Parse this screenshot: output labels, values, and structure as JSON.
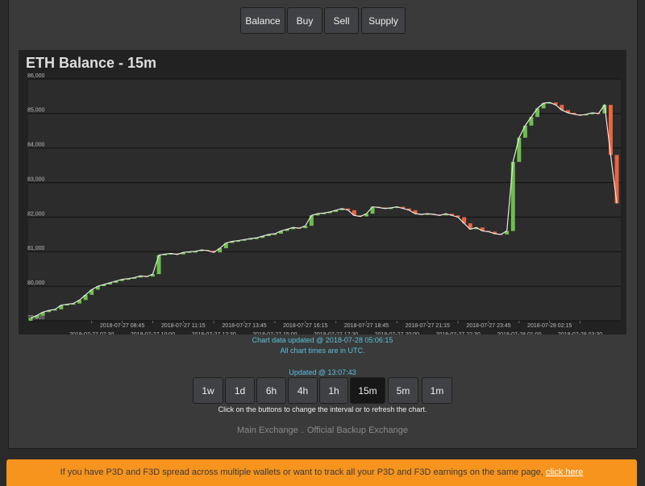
{
  "nav": [
    "Balance",
    "Buy",
    "Sell",
    "Supply"
  ],
  "chart_data": {
    "type": "candlestick",
    "title": "ETH Balance - 15m",
    "x": [
      "2018-07-27 05:00",
      "2018-07-27 05:15",
      "2018-07-27 05:30",
      "2018-07-27 05:45",
      "2018-07-27 06:00",
      "2018-07-27 06:15",
      "2018-07-27 06:30",
      "2018-07-27 06:45",
      "2018-07-27 07:00",
      "2018-07-27 07:15",
      "2018-07-27 07:30",
      "2018-07-27 07:45",
      "2018-07-27 08:00",
      "2018-07-27 08:15",
      "2018-07-27 08:30",
      "2018-07-27 08:45",
      "2018-07-27 09:00",
      "2018-07-27 09:15",
      "2018-07-27 09:30",
      "2018-07-27 09:45",
      "2018-07-27 10:00",
      "2018-07-27 10:15",
      "2018-07-27 10:30",
      "2018-07-27 10:45",
      "2018-07-27 11:00",
      "2018-07-27 11:15",
      "2018-07-27 11:30",
      "2018-07-27 11:45",
      "2018-07-27 12:00",
      "2018-07-27 12:15",
      "2018-07-27 12:30",
      "2018-07-27 12:45",
      "2018-07-27 13:00",
      "2018-07-27 13:15",
      "2018-07-27 13:30",
      "2018-07-27 13:45",
      "2018-07-27 14:00",
      "2018-07-27 14:15",
      "2018-07-27 14:30",
      "2018-07-27 14:45",
      "2018-07-27 15:00",
      "2018-07-27 15:15",
      "2018-07-27 15:30",
      "2018-07-27 15:45",
      "2018-07-27 16:00",
      "2018-07-27 16:15",
      "2018-07-27 16:30",
      "2018-07-27 16:45",
      "2018-07-27 17:00",
      "2018-07-27 17:15",
      "2018-07-27 17:30",
      "2018-07-27 17:45",
      "2018-07-27 18:00",
      "2018-07-27 18:15",
      "2018-07-27 18:30",
      "2018-07-27 18:45",
      "2018-07-27 19:00",
      "2018-07-27 19:15",
      "2018-07-27 19:30",
      "2018-07-27 19:45",
      "2018-07-27 20:00",
      "2018-07-27 20:15",
      "2018-07-27 20:30",
      "2018-07-27 20:45",
      "2018-07-27 21:00",
      "2018-07-27 21:15",
      "2018-07-27 21:30",
      "2018-07-27 21:45",
      "2018-07-27 22:00",
      "2018-07-27 22:15",
      "2018-07-27 22:30",
      "2018-07-27 22:45",
      "2018-07-27 23:00",
      "2018-07-27 23:15",
      "2018-07-27 23:30",
      "2018-07-27 23:45",
      "2018-07-28 00:00",
      "2018-07-28 00:15",
      "2018-07-28 00:30",
      "2018-07-28 00:45",
      "2018-07-28 01:00",
      "2018-07-28 01:15",
      "2018-07-28 01:30",
      "2018-07-28 01:45",
      "2018-07-28 02:00",
      "2018-07-28 02:15",
      "2018-07-28 02:30",
      "2018-07-28 02:45",
      "2018-07-28 03:00",
      "2018-07-28 03:15",
      "2018-07-28 03:30",
      "2018-07-28 03:45",
      "2018-07-28 04:00",
      "2018-07-28 04:15",
      "2018-07-28 04:30",
      "2018-07-28 04:45",
      "2018-07-28 05:00"
    ],
    "open": [
      79000,
      79080,
      79150,
      79250,
      79300,
      79330,
      79450,
      79480,
      79500,
      79600,
      79750,
      79900,
      80000,
      80050,
      80100,
      80150,
      80200,
      80220,
      80250,
      80300,
      80280,
      80350,
      80900,
      80930,
      80950,
      80920,
      80980,
      81000,
      81010,
      81050,
      81030,
      80980,
      81100,
      81250,
      81300,
      81320,
      81350,
      81380,
      81400,
      81450,
      81500,
      81520,
      81600,
      81650,
      81700,
      81680,
      81750,
      82050,
      82100,
      82120,
      82150,
      82200,
      82250,
      82200,
      82050,
      82020,
      82100,
      82300,
      82280,
      82250,
      82270,
      82300,
      82250,
      82200,
      82100,
      82080,
      82100,
      82080,
      82050,
      82100,
      82050,
      82000,
      81820,
      81650,
      81700,
      81600,
      81580,
      81520,
      81500,
      81600,
      83600,
      84300,
      84650,
      84900,
      85150,
      85300,
      85320,
      85250,
      85100,
      85020,
      84980,
      84950,
      84980,
      85020,
      85000,
      85250,
      83800
    ],
    "close": [
      79080,
      79150,
      79250,
      79300,
      79330,
      79450,
      79480,
      79500,
      79600,
      79750,
      79900,
      80000,
      80050,
      80100,
      80150,
      80200,
      80220,
      80250,
      80300,
      80280,
      80350,
      80900,
      80930,
      80950,
      80920,
      80980,
      81000,
      81010,
      81050,
      81030,
      80980,
      81100,
      81250,
      81300,
      81320,
      81350,
      81380,
      81400,
      81450,
      81500,
      81520,
      81600,
      81650,
      81700,
      81680,
      81750,
      82050,
      82100,
      82120,
      82150,
      82200,
      82250,
      82200,
      82050,
      82020,
      82100,
      82300,
      82280,
      82250,
      82270,
      82300,
      82250,
      82200,
      82100,
      82080,
      82100,
      82080,
      82050,
      82100,
      82050,
      82000,
      81820,
      81650,
      81700,
      81600,
      81580,
      81520,
      81500,
      81600,
      83600,
      84300,
      84650,
      84900,
      85150,
      85300,
      85320,
      85250,
      85100,
      85020,
      84980,
      84950,
      84980,
      85020,
      85000,
      85250,
      83800,
      82400
    ],
    "up_color": "#6cc04a",
    "down_color": "#f0643c",
    "line_color": "#e8e8e8",
    "xlim": [
      "2018-07-27 05:00",
      "2018-07-28 05:00"
    ],
    "xticks": [
      "2018-07-27 07:30",
      "2018-07-27 08:45",
      "2018-07-27 10:00",
      "2018-07-27 11:15",
      "2018-07-27 12:30",
      "2018-07-27 13:45",
      "2018-07-27 15:00",
      "2018-07-27 16:15",
      "2018-07-27 17:30",
      "2018-07-27 18:45",
      "2018-07-27 20:00",
      "2018-07-27 21:15",
      "2018-07-27 22:30",
      "2018-07-27 23:45",
      "2018-07-28 01:00",
      "2018-07-28 02:15",
      "2018-07-28 03:30"
    ],
    "ylim": [
      79000,
      86000
    ],
    "yticks": [
      {
        "value": 79000,
        "label": "79,000"
      },
      {
        "value": 80000,
        "label": "80,000"
      },
      {
        "value": 81000,
        "label": "81,000"
      },
      {
        "value": 82000,
        "label": "82,000"
      },
      {
        "value": 83000,
        "label": "83,000"
      },
      {
        "value": 84000,
        "label": "84,000"
      },
      {
        "value": 85000,
        "label": "85,000"
      },
      {
        "value": 86000,
        "label": "86,000"
      }
    ],
    "grid": true
  },
  "chart_notes": [
    "Chart data updated @ 2018-07-28 05:06:15",
    "All chart times are in UTC."
  ],
  "updated": "Updated @ 13:07:43",
  "intervals": {
    "buttons": [
      "1w",
      "1d",
      "6h",
      "4h",
      "1h",
      "15m",
      "5m",
      "1m"
    ],
    "active": "15m"
  },
  "hint": "Click on the buttons to change the interval or to refresh the chart.",
  "footer": {
    "links": [
      "Main Exchange",
      "Official Backup Exchange"
    ],
    "separator": "."
  },
  "banner": {
    "text": "If you have P3D and F3D spread across multiple wallets or want to track all your P3D and F3D earnings on the same page,",
    "link": "click here"
  }
}
